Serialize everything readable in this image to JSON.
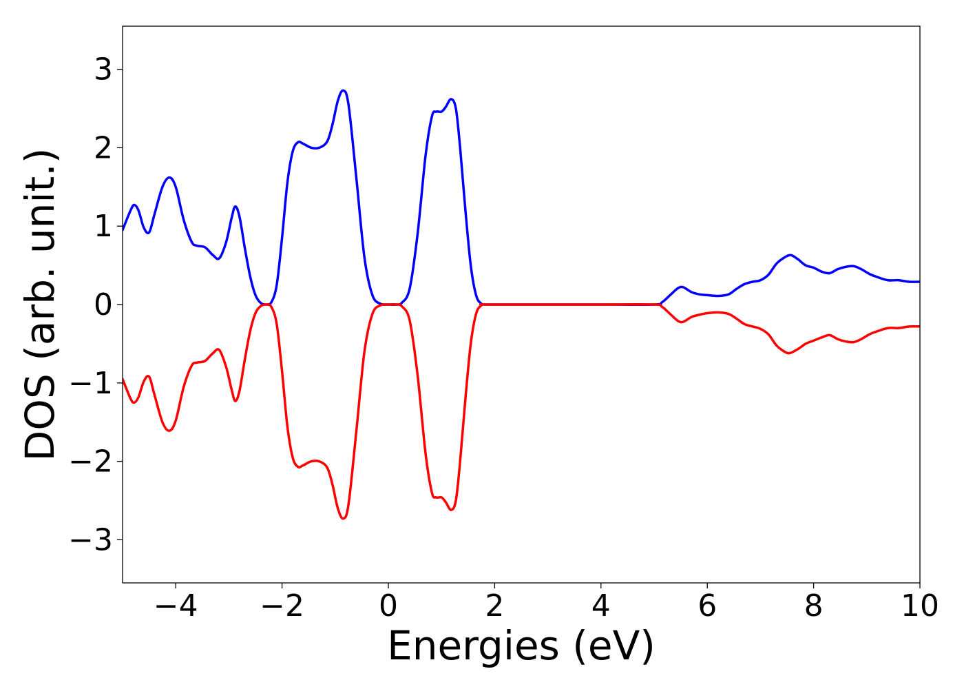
{
  "chart_data": {
    "type": "line",
    "title": "",
    "xlabel": "Energies (eV)",
    "ylabel": "DOS (arb. unit.)",
    "xlim": [
      -5,
      10
    ],
    "ylim": [
      -3.55,
      3.55
    ],
    "xticks": [
      -4,
      -2,
      0,
      2,
      4,
      6,
      8,
      10
    ],
    "xtick_labels": [
      "−4",
      "−2",
      "0",
      "2",
      "4",
      "6",
      "8",
      "10"
    ],
    "yticks": [
      3,
      2,
      1,
      0,
      -1,
      -2,
      -3
    ],
    "ytick_labels": [
      "3",
      "2",
      "1",
      "0",
      "−1",
      "−2",
      "−3"
    ],
    "grid": false,
    "legend": "none",
    "series": [
      {
        "color": "#0000ff",
        "points": [
          [
            -5.0,
            0.95
          ],
          [
            -4.85,
            1.2
          ],
          [
            -4.78,
            1.27
          ],
          [
            -4.7,
            1.2
          ],
          [
            -4.6,
            0.98
          ],
          [
            -4.5,
            0.92
          ],
          [
            -4.4,
            1.15
          ],
          [
            -4.25,
            1.5
          ],
          [
            -4.12,
            1.62
          ],
          [
            -4.0,
            1.5
          ],
          [
            -3.85,
            1.08
          ],
          [
            -3.7,
            0.8
          ],
          [
            -3.6,
            0.75
          ],
          [
            -3.45,
            0.73
          ],
          [
            -3.3,
            0.63
          ],
          [
            -3.18,
            0.59
          ],
          [
            -3.05,
            0.8
          ],
          [
            -2.95,
            1.1
          ],
          [
            -2.88,
            1.25
          ],
          [
            -2.8,
            1.12
          ],
          [
            -2.7,
            0.72
          ],
          [
            -2.6,
            0.36
          ],
          [
            -2.5,
            0.12
          ],
          [
            -2.4,
            0.02
          ],
          [
            -2.3,
            0.0
          ],
          [
            -2.2,
            0.03
          ],
          [
            -2.1,
            0.25
          ],
          [
            -2.0,
            0.85
          ],
          [
            -1.9,
            1.55
          ],
          [
            -1.8,
            1.95
          ],
          [
            -1.7,
            2.07
          ],
          [
            -1.6,
            2.05
          ],
          [
            -1.45,
            2.0
          ],
          [
            -1.3,
            2.0
          ],
          [
            -1.15,
            2.08
          ],
          [
            -1.05,
            2.3
          ],
          [
            -0.95,
            2.6
          ],
          [
            -0.85,
            2.73
          ],
          [
            -0.75,
            2.55
          ],
          [
            -0.6,
            1.6
          ],
          [
            -0.45,
            0.6
          ],
          [
            -0.3,
            0.12
          ],
          [
            -0.15,
            0.01
          ],
          [
            0.0,
            0.0
          ],
          [
            0.15,
            0.0
          ],
          [
            0.25,
            0.02
          ],
          [
            0.4,
            0.2
          ],
          [
            0.55,
            0.9
          ],
          [
            0.7,
            1.9
          ],
          [
            0.82,
            2.4
          ],
          [
            0.9,
            2.46
          ],
          [
            1.0,
            2.46
          ],
          [
            1.08,
            2.52
          ],
          [
            1.18,
            2.62
          ],
          [
            1.27,
            2.5
          ],
          [
            1.35,
            2.0
          ],
          [
            1.45,
            1.2
          ],
          [
            1.55,
            0.5
          ],
          [
            1.65,
            0.12
          ],
          [
            1.75,
            0.01
          ],
          [
            1.85,
            0.0
          ],
          [
            3.0,
            0.0
          ],
          [
            4.0,
            0.0
          ],
          [
            5.0,
            0.0
          ],
          [
            5.15,
            0.03
          ],
          [
            5.3,
            0.12
          ],
          [
            5.45,
            0.21
          ],
          [
            5.55,
            0.22
          ],
          [
            5.7,
            0.16
          ],
          [
            5.85,
            0.13
          ],
          [
            6.0,
            0.12
          ],
          [
            6.2,
            0.11
          ],
          [
            6.4,
            0.13
          ],
          [
            6.55,
            0.2
          ],
          [
            6.7,
            0.26
          ],
          [
            6.85,
            0.29
          ],
          [
            7.0,
            0.31
          ],
          [
            7.15,
            0.38
          ],
          [
            7.3,
            0.52
          ],
          [
            7.45,
            0.6
          ],
          [
            7.57,
            0.63
          ],
          [
            7.7,
            0.58
          ],
          [
            7.85,
            0.5
          ],
          [
            8.0,
            0.47
          ],
          [
            8.15,
            0.42
          ],
          [
            8.3,
            0.4
          ],
          [
            8.45,
            0.45
          ],
          [
            8.6,
            0.48
          ],
          [
            8.75,
            0.49
          ],
          [
            8.9,
            0.45
          ],
          [
            9.05,
            0.39
          ],
          [
            9.2,
            0.35
          ],
          [
            9.4,
            0.31
          ],
          [
            9.6,
            0.31
          ],
          [
            9.8,
            0.29
          ],
          [
            10.0,
            0.29
          ]
        ]
      },
      {
        "color": "#ff0000",
        "points": [
          [
            -5.0,
            -0.95
          ],
          [
            -4.85,
            -1.2
          ],
          [
            -4.78,
            -1.25
          ],
          [
            -4.7,
            -1.18
          ],
          [
            -4.6,
            -0.98
          ],
          [
            -4.5,
            -0.92
          ],
          [
            -4.4,
            -1.15
          ],
          [
            -4.25,
            -1.5
          ],
          [
            -4.12,
            -1.61
          ],
          [
            -4.0,
            -1.48
          ],
          [
            -3.85,
            -1.05
          ],
          [
            -3.7,
            -0.78
          ],
          [
            -3.6,
            -0.74
          ],
          [
            -3.45,
            -0.72
          ],
          [
            -3.3,
            -0.62
          ],
          [
            -3.18,
            -0.58
          ],
          [
            -3.05,
            -0.8
          ],
          [
            -2.95,
            -1.08
          ],
          [
            -2.88,
            -1.23
          ],
          [
            -2.8,
            -1.1
          ],
          [
            -2.7,
            -0.7
          ],
          [
            -2.6,
            -0.34
          ],
          [
            -2.5,
            -0.11
          ],
          [
            -2.4,
            -0.02
          ],
          [
            -2.3,
            0.0
          ],
          [
            -2.2,
            -0.03
          ],
          [
            -2.1,
            -0.25
          ],
          [
            -2.0,
            -0.85
          ],
          [
            -1.9,
            -1.55
          ],
          [
            -1.8,
            -1.95
          ],
          [
            -1.7,
            -2.07
          ],
          [
            -1.6,
            -2.05
          ],
          [
            -1.45,
            -2.0
          ],
          [
            -1.3,
            -2.0
          ],
          [
            -1.15,
            -2.08
          ],
          [
            -1.05,
            -2.3
          ],
          [
            -0.95,
            -2.6
          ],
          [
            -0.85,
            -2.73
          ],
          [
            -0.75,
            -2.55
          ],
          [
            -0.6,
            -1.6
          ],
          [
            -0.45,
            -0.6
          ],
          [
            -0.3,
            -0.12
          ],
          [
            -0.15,
            -0.01
          ],
          [
            0.0,
            0.0
          ],
          [
            0.15,
            0.0
          ],
          [
            0.25,
            -0.02
          ],
          [
            0.4,
            -0.2
          ],
          [
            0.55,
            -0.9
          ],
          [
            0.7,
            -1.9
          ],
          [
            0.82,
            -2.4
          ],
          [
            0.9,
            -2.46
          ],
          [
            1.0,
            -2.46
          ],
          [
            1.08,
            -2.52
          ],
          [
            1.18,
            -2.62
          ],
          [
            1.27,
            -2.5
          ],
          [
            1.35,
            -2.0
          ],
          [
            1.45,
            -1.2
          ],
          [
            1.55,
            -0.5
          ],
          [
            1.65,
            -0.12
          ],
          [
            1.75,
            -0.01
          ],
          [
            1.85,
            0.0
          ],
          [
            3.0,
            0.0
          ],
          [
            4.0,
            0.0
          ],
          [
            5.0,
            0.0
          ],
          [
            5.15,
            -0.03
          ],
          [
            5.3,
            -0.12
          ],
          [
            5.45,
            -0.21
          ],
          [
            5.55,
            -0.22
          ],
          [
            5.7,
            -0.16
          ],
          [
            5.85,
            -0.13
          ],
          [
            6.0,
            -0.11
          ],
          [
            6.2,
            -0.1
          ],
          [
            6.4,
            -0.12
          ],
          [
            6.55,
            -0.18
          ],
          [
            6.7,
            -0.25
          ],
          [
            6.85,
            -0.28
          ],
          [
            7.0,
            -0.31
          ],
          [
            7.15,
            -0.38
          ],
          [
            7.3,
            -0.52
          ],
          [
            7.45,
            -0.6
          ],
          [
            7.55,
            -0.62
          ],
          [
            7.7,
            -0.57
          ],
          [
            7.85,
            -0.5
          ],
          [
            8.0,
            -0.46
          ],
          [
            8.15,
            -0.42
          ],
          [
            8.3,
            -0.39
          ],
          [
            8.45,
            -0.44
          ],
          [
            8.6,
            -0.47
          ],
          [
            8.75,
            -0.48
          ],
          [
            8.9,
            -0.44
          ],
          [
            9.05,
            -0.38
          ],
          [
            9.2,
            -0.34
          ],
          [
            9.4,
            -0.3
          ],
          [
            9.6,
            -0.3
          ],
          [
            9.8,
            -0.28
          ],
          [
            10.0,
            -0.28
          ]
        ]
      }
    ]
  }
}
